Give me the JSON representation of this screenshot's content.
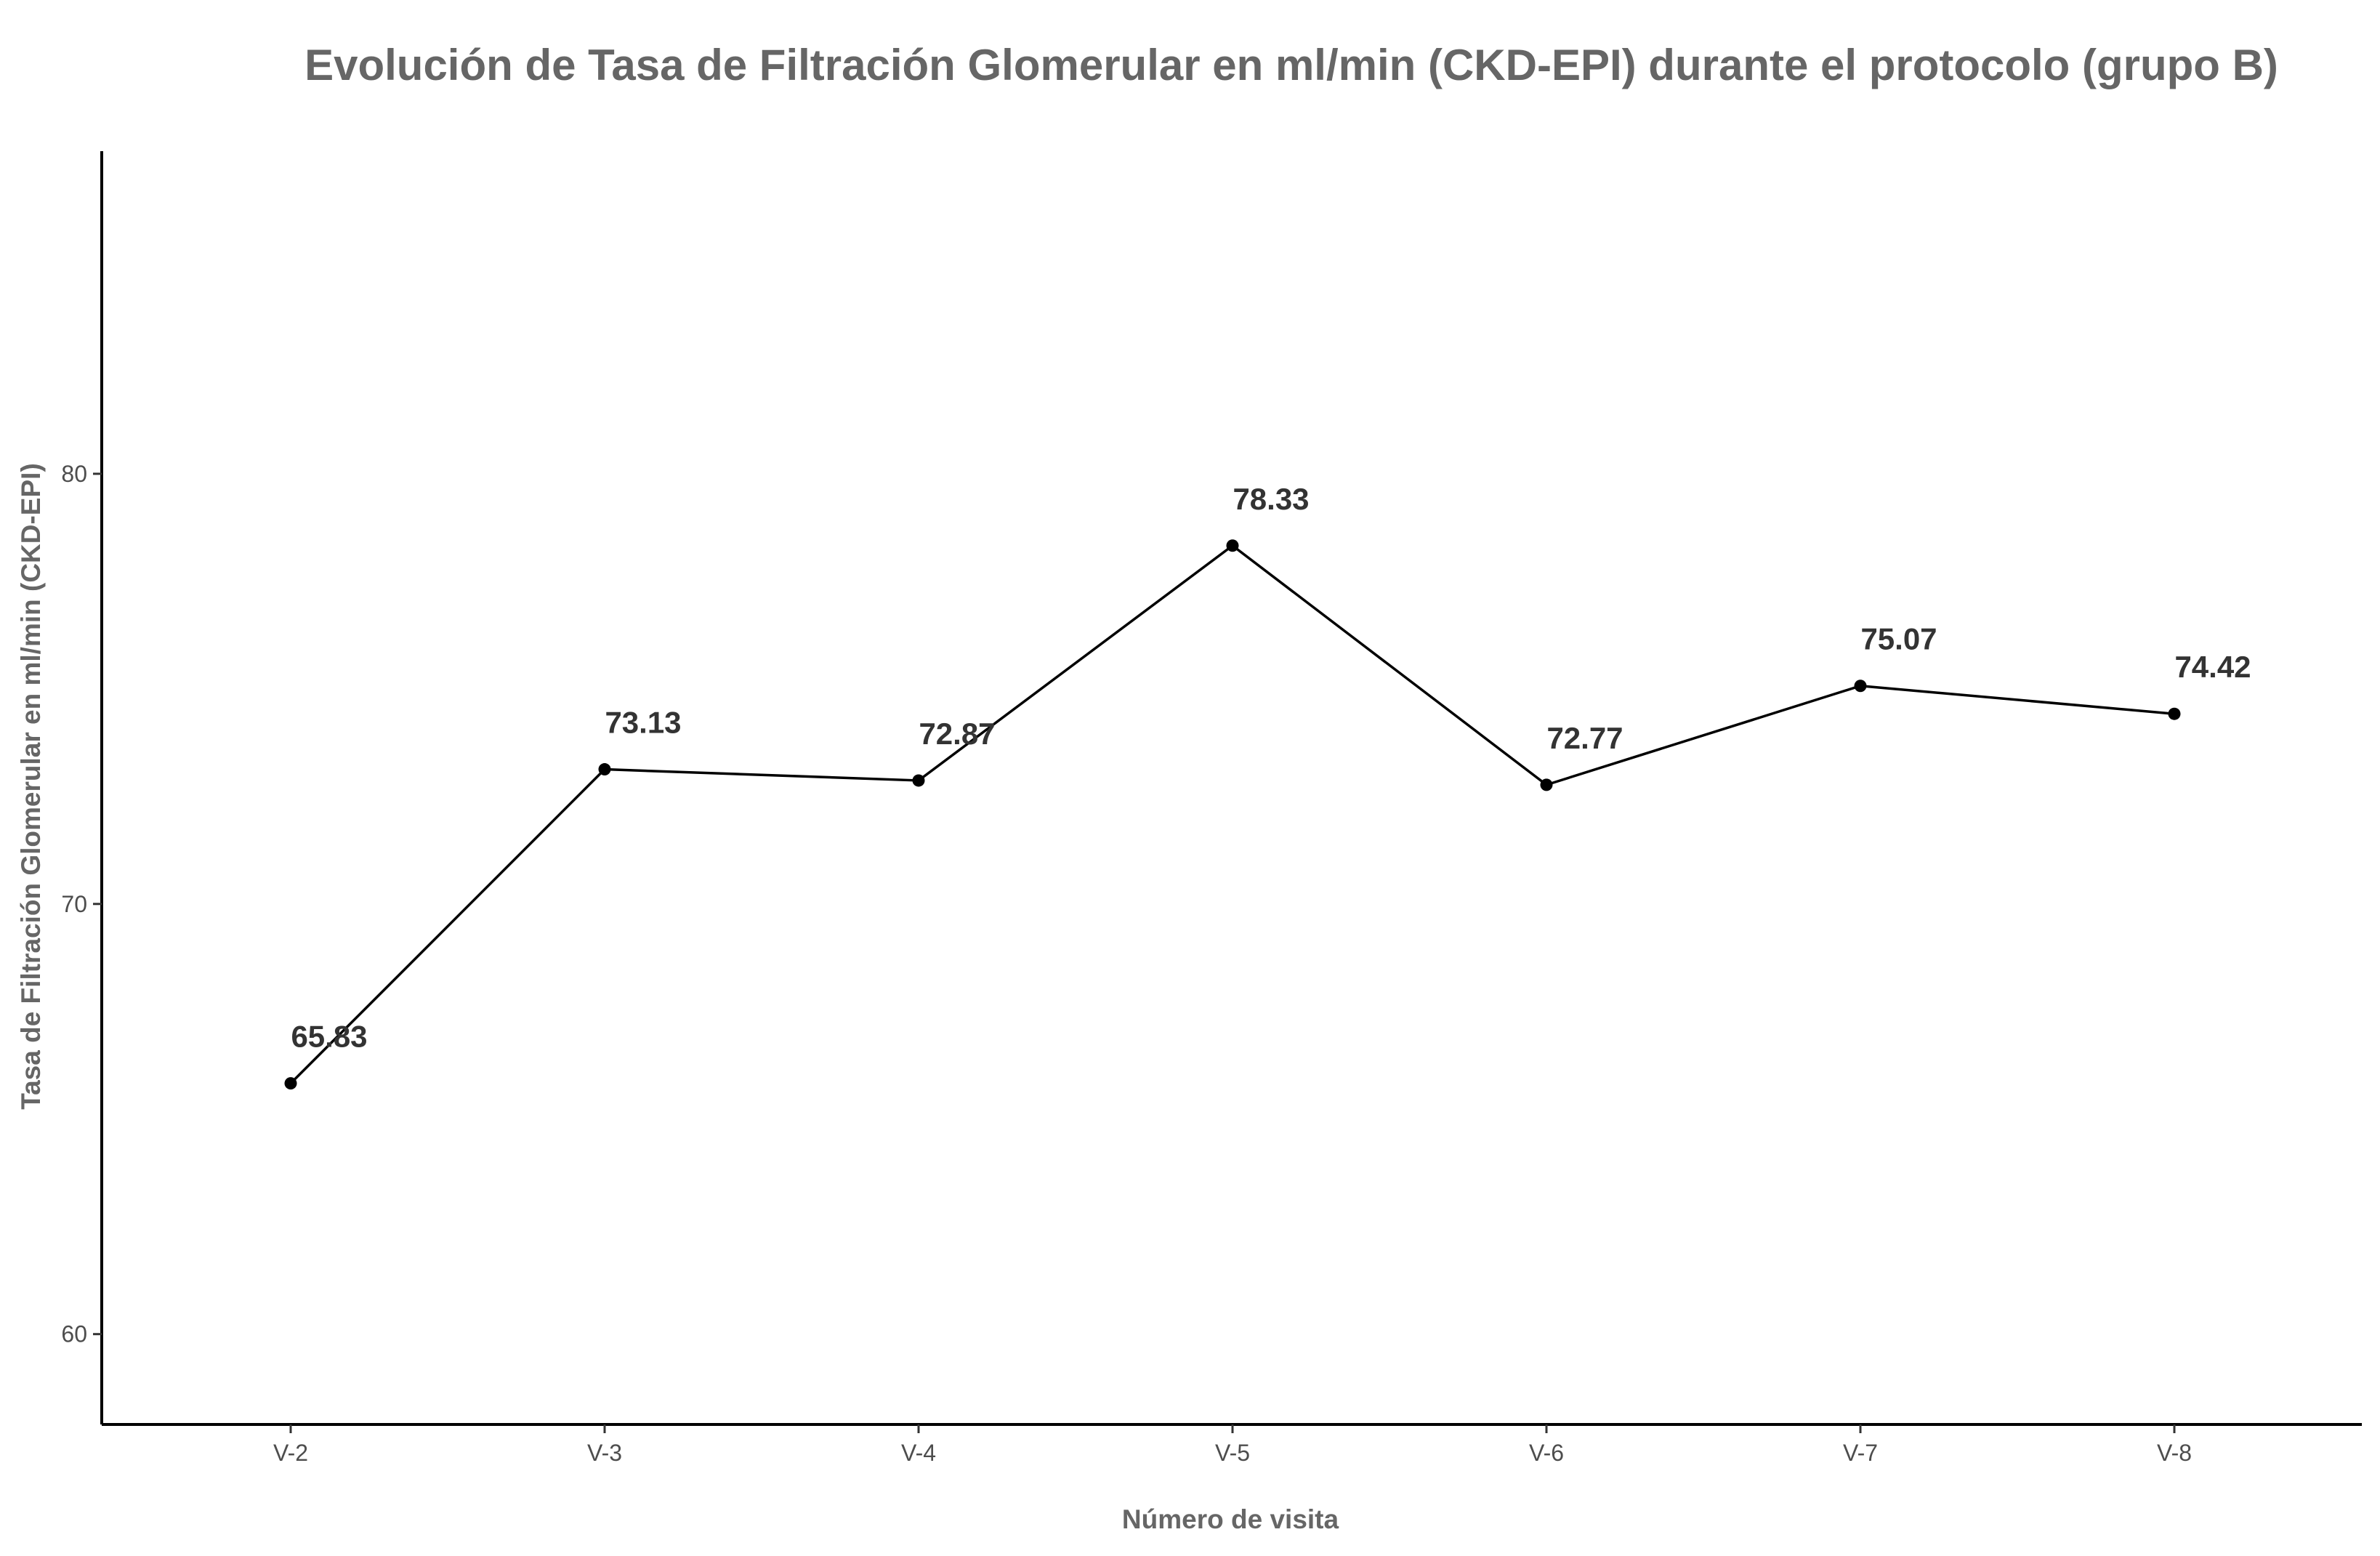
{
  "chart_data": {
    "type": "line",
    "title": "Evolución de Tasa de Filtración Glomerular en ml/min (CKD-EPI) durante el protocolo (grupo B)",
    "xlabel": "Número de visita",
    "ylabel": "Tasa de Filtración Glomerular en ml/min (CKD-EPI)",
    "categories": [
      "V-2",
      "V-3",
      "V-4",
      "V-5",
      "V-6",
      "V-7",
      "V-8"
    ],
    "values": [
      65.83,
      73.13,
      72.87,
      78.33,
      72.77,
      75.07,
      74.42
    ],
    "data_labels": [
      "65.83",
      "73.13",
      "72.87",
      "78.33",
      "72.77",
      "75.07",
      "74.42"
    ],
    "ylim": [
      57.9,
      87.5
    ],
    "yticks": [
      60,
      70,
      80
    ],
    "ytick_labels": [
      "60",
      "70",
      "80"
    ],
    "grid": false,
    "legend": "none",
    "line_color": "#000000",
    "point_color": "#000000",
    "title_color": "#666666",
    "label_color": "#333333"
  }
}
